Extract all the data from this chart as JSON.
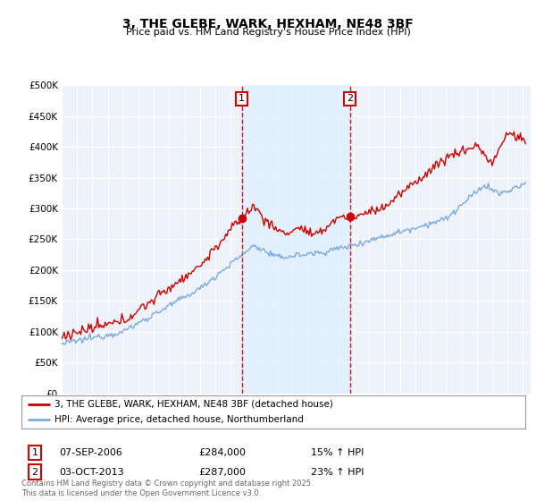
{
  "title": "3, THE GLEBE, WARK, HEXHAM, NE48 3BF",
  "subtitle": "Price paid vs. HM Land Registry's House Price Index (HPI)",
  "ylim": [
    0,
    500000
  ],
  "xlim_start": 1995.0,
  "xlim_end": 2025.5,
  "sale1_x": 2006.708,
  "sale1_price": 284000,
  "sale1_pct": "15%",
  "sale1_date": "07-SEP-2006",
  "sale2_x": 2013.75,
  "sale2_price": 287000,
  "sale2_pct": "23%",
  "sale2_date": "03-OCT-2013",
  "legend_label_red": "3, THE GLEBE, WARK, HEXHAM, NE48 3BF (detached house)",
  "legend_label_blue": "HPI: Average price, detached house, Northumberland",
  "footer": "Contains HM Land Registry data © Crown copyright and database right 2025.\nThis data is licensed under the Open Government Licence v3.0.",
  "color_red": "#cc0000",
  "color_blue": "#7aaadd",
  "color_fill": "#ddeeff",
  "color_vline": "#cc0000",
  "bg_color": "#eef2fb",
  "grid_color": "#ffffff"
}
